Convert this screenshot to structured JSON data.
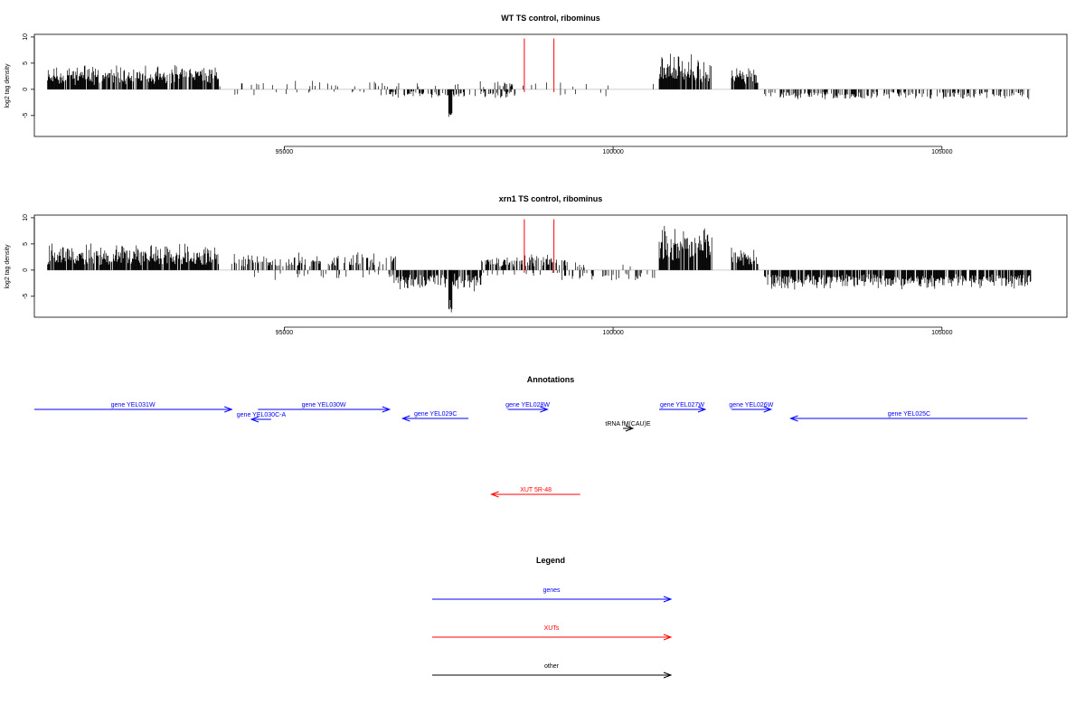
{
  "colors": {
    "gene": "#0000ff",
    "xut": "#ff0000",
    "other": "#000000",
    "signal": "#000000",
    "marker": "#ff0000",
    "baseline": "#bebebe"
  },
  "chart_data": [
    {
      "type": "bar",
      "title": "WT TS control, ribominus",
      "ylabel": "log2 tag density",
      "xlim": [
        91200,
        106900
      ],
      "ylim": [
        -9,
        10.5
      ],
      "xticks": [
        95000,
        100000,
        105000
      ],
      "yticks": [
        -5,
        0,
        5,
        10
      ],
      "grid": false,
      "markers_x": [
        98650,
        99100
      ],
      "regions": [
        {
          "start": 91400,
          "end": 94000,
          "sign": 1,
          "density": 0.85,
          "scale": 3.2,
          "amp": 1.1,
          "seed": 11
        },
        {
          "start": 94000,
          "end": 96600,
          "sign": 1,
          "density": 0.1,
          "scale": 1.3,
          "amp": 1.0,
          "seed": 12
        },
        {
          "start": 94000,
          "end": 96600,
          "sign": -1,
          "density": 0.04,
          "scale": 1.0,
          "amp": 1.0,
          "seed": 13
        },
        {
          "start": 96600,
          "end": 98500,
          "sign": -1,
          "density": 0.45,
          "scale": 1.2,
          "amp": 1.2,
          "seed": 14
        },
        {
          "start": 96600,
          "end": 98500,
          "sign": 1,
          "density": 0.08,
          "scale": 1.2,
          "amp": 1.0,
          "seed": 15
        },
        {
          "start": 97500,
          "end": 97550,
          "sign": -1,
          "density": 1.0,
          "scale": 5.8,
          "amp": 0.05,
          "seed": 16
        },
        {
          "start": 98200,
          "end": 98500,
          "sign": 1,
          "density": 0.25,
          "scale": 1.3,
          "amp": 1.0,
          "seed": 17
        },
        {
          "start": 98500,
          "end": 100000,
          "sign": 1,
          "density": 0.04,
          "scale": 1.2,
          "amp": 1.0,
          "seed": 18
        },
        {
          "start": 98500,
          "end": 100000,
          "sign": -1,
          "density": 0.03,
          "scale": 1.0,
          "amp": 1.0,
          "seed": 19
        },
        {
          "start": 100000,
          "end": 100700,
          "sign": 1,
          "density": 0.03,
          "scale": 2.0,
          "amp": 1.0,
          "seed": 20
        },
        {
          "start": 100700,
          "end": 101500,
          "sign": 1,
          "density": 0.85,
          "scale": 4.8,
          "amp": 1.1,
          "seed": 21
        },
        {
          "start": 101500,
          "end": 101800,
          "sign": -1,
          "density": 0.02,
          "scale": 1.0,
          "amp": 1.0,
          "seed": 22
        },
        {
          "start": 101800,
          "end": 102200,
          "sign": 1,
          "density": 0.85,
          "scale": 3.2,
          "amp": 1.1,
          "seed": 23
        },
        {
          "start": 102300,
          "end": 106350,
          "sign": -1,
          "density": 0.4,
          "scale": 1.4,
          "amp": 1.0,
          "seed": 24
        }
      ]
    },
    {
      "type": "bar",
      "title": "xrn1 TS control, ribominus",
      "ylabel": "log2 tag density",
      "xlim": [
        91200,
        106900
      ],
      "ylim": [
        -9,
        10.5
      ],
      "xticks": [
        95000,
        100000,
        105000
      ],
      "yticks": [
        -5,
        0,
        5,
        10
      ],
      "grid": false,
      "markers_x": [
        98650,
        99100
      ],
      "regions": [
        {
          "start": 91400,
          "end": 94000,
          "sign": 1,
          "density": 0.9,
          "scale": 3.4,
          "amp": 1.1,
          "seed": 31
        },
        {
          "start": 94200,
          "end": 96700,
          "sign": 1,
          "density": 0.45,
          "scale": 2.2,
          "amp": 1.2,
          "seed": 32
        },
        {
          "start": 94200,
          "end": 96700,
          "sign": -1,
          "density": 0.08,
          "scale": 1.4,
          "amp": 1.0,
          "seed": 33
        },
        {
          "start": 96600,
          "end": 98000,
          "sign": -1,
          "density": 0.7,
          "scale": 2.6,
          "amp": 1.2,
          "seed": 34
        },
        {
          "start": 97500,
          "end": 97550,
          "sign": -1,
          "density": 1.0,
          "scale": 8.2,
          "amp": 0.05,
          "seed": 35
        },
        {
          "start": 98000,
          "end": 99300,
          "sign": 1,
          "density": 0.6,
          "scale": 2.3,
          "amp": 1.1,
          "seed": 36
        },
        {
          "start": 98000,
          "end": 99300,
          "sign": -1,
          "density": 0.12,
          "scale": 1.4,
          "amp": 1.0,
          "seed": 37
        },
        {
          "start": 99300,
          "end": 100700,
          "sign": -1,
          "density": 0.25,
          "scale": 1.5,
          "amp": 1.0,
          "seed": 38
        },
        {
          "start": 99300,
          "end": 100700,
          "sign": 1,
          "density": 0.05,
          "scale": 1.2,
          "amp": 1.0,
          "seed": 39
        },
        {
          "start": 100700,
          "end": 101500,
          "sign": 1,
          "density": 0.9,
          "scale": 5.8,
          "amp": 1.1,
          "seed": 40
        },
        {
          "start": 101800,
          "end": 102200,
          "sign": 1,
          "density": 0.85,
          "scale": 3.0,
          "amp": 1.0,
          "seed": 41
        },
        {
          "start": 102300,
          "end": 106350,
          "sign": -1,
          "density": 0.85,
          "scale": 2.6,
          "amp": 1.1,
          "seed": 42
        }
      ]
    }
  ],
  "annotations": {
    "title": "Annotations",
    "features": [
      {
        "label": "gene YEL031W",
        "kind": "gene",
        "start": 91200,
        "end": 94200,
        "dir": "right",
        "row": 0
      },
      {
        "label": "gene YEL030C-A",
        "kind": "gene",
        "start": 94500,
        "end": 94800,
        "dir": "left",
        "row": 2
      },
      {
        "label": "gene YEL030W",
        "kind": "gene",
        "start": 94600,
        "end": 96600,
        "dir": "right",
        "row": 0
      },
      {
        "label": "gene YEL029C",
        "kind": "gene",
        "start": 96800,
        "end": 97800,
        "dir": "left",
        "row": 1
      },
      {
        "label": "gene YEL028W",
        "kind": "gene",
        "start": 98400,
        "end": 99000,
        "dir": "right",
        "row": 0
      },
      {
        "label": "tRNA fM(CAU)E",
        "kind": "other",
        "start": 100150,
        "end": 100300,
        "dir": "right",
        "row": 3
      },
      {
        "label": "gene YEL027W",
        "kind": "gene",
        "start": 100700,
        "end": 101400,
        "dir": "right",
        "row": 0
      },
      {
        "label": "gene YEL026W",
        "kind": "gene",
        "start": 101800,
        "end": 102400,
        "dir": "right",
        "row": 0
      },
      {
        "label": "gene YEL025C",
        "kind": "gene",
        "start": 102700,
        "end": 106300,
        "dir": "left",
        "row": 1
      },
      {
        "label": "XUT 5R-48",
        "kind": "xut",
        "start": 98150,
        "end": 99500,
        "dir": "left",
        "row": 4
      }
    ]
  },
  "legend": {
    "title": "Legend",
    "items": [
      {
        "label": "genes",
        "kind": "gene"
      },
      {
        "label": "XUTs",
        "kind": "xut"
      },
      {
        "label": "other",
        "kind": "other"
      }
    ]
  }
}
